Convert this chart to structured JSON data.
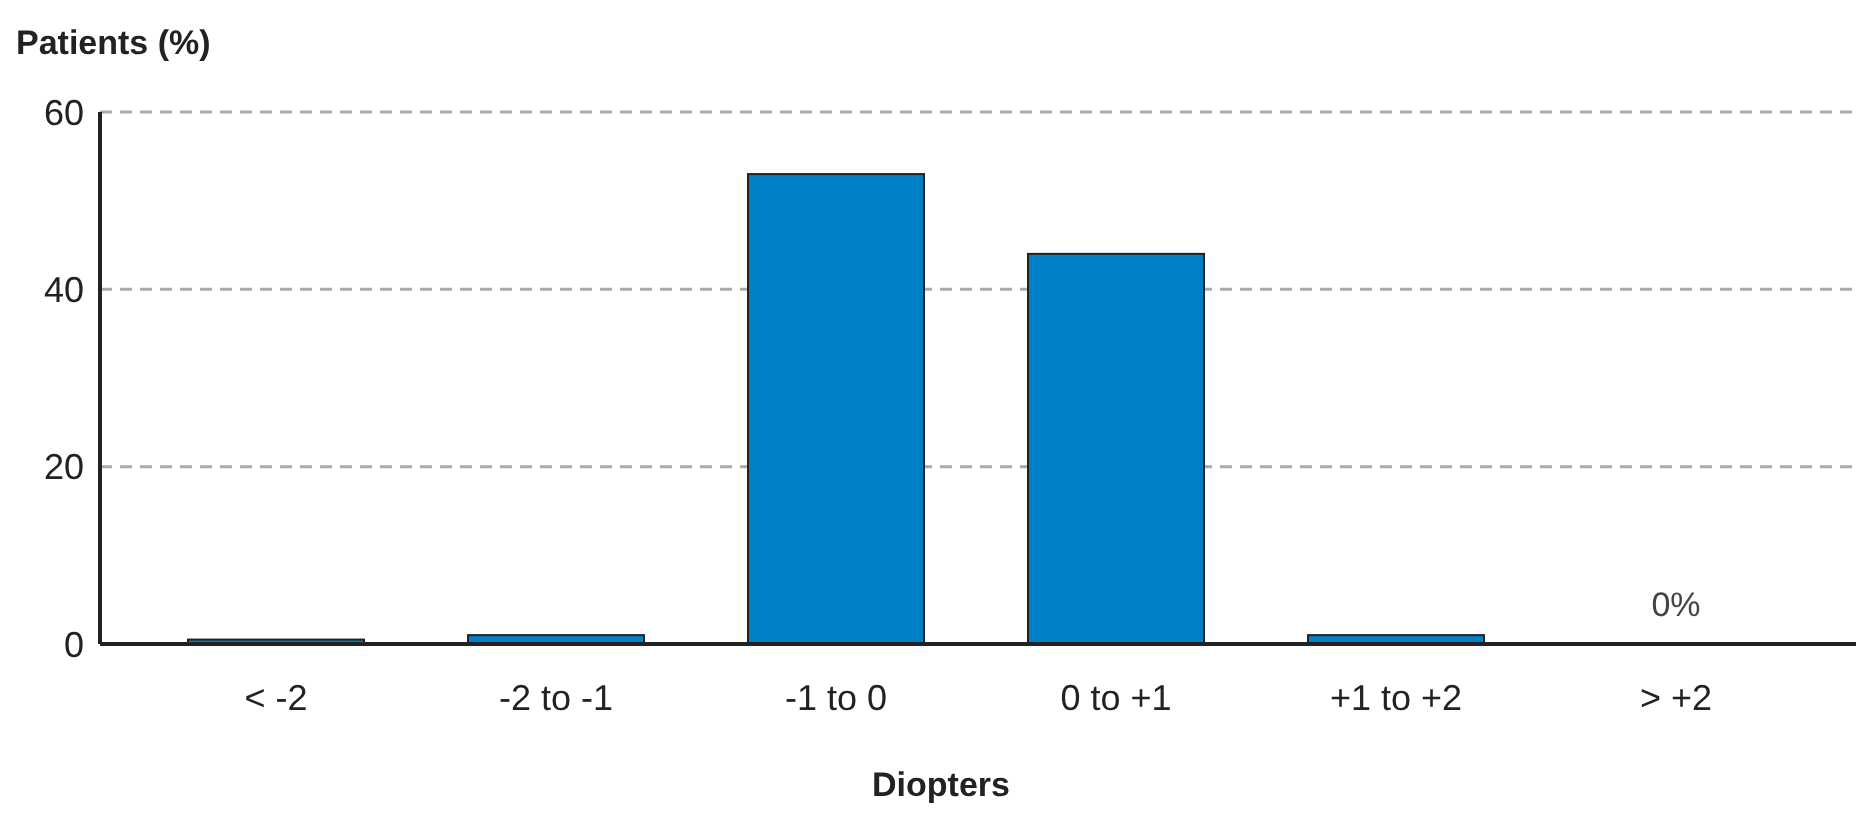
{
  "chart_data": {
    "type": "bar",
    "ylabel": "Patients (%)",
    "xlabel": "Diopters",
    "categories": [
      "< -2",
      "-2 to -1",
      "-1 to 0",
      "0 to +1",
      "+1 to +2",
      "> +2"
    ],
    "values": [
      0.5,
      1,
      53,
      44,
      1,
      0
    ],
    "value_labels": [
      null,
      null,
      null,
      null,
      null,
      "0%"
    ],
    "color": "#0080c8",
    "ylim": [
      0,
      60
    ],
    "yticks": [
      0,
      20,
      40,
      60
    ],
    "grid": "y"
  }
}
